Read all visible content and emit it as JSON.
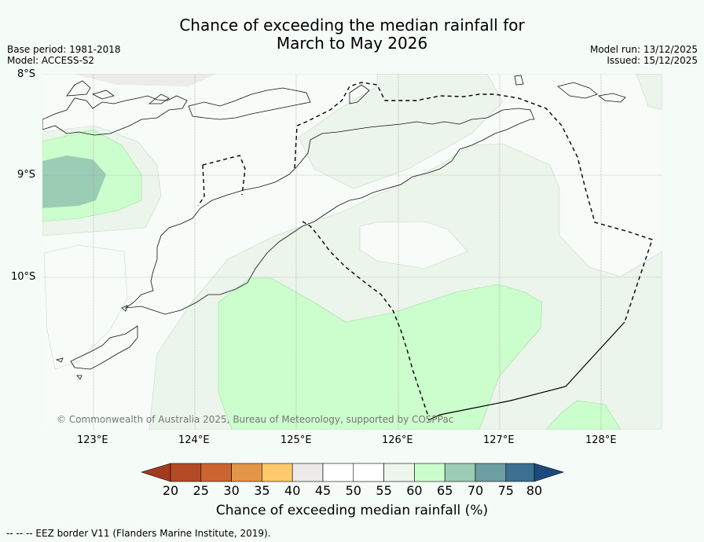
{
  "title": {
    "line1": "Chance of exceeding the median rainfall for",
    "line2": "March to May 2026"
  },
  "meta": {
    "base_period": "Base period: 1981-2018",
    "model": "Model: ACCESS-S2",
    "model_run": "Model run: 13/12/2025",
    "issued": "Issued: 15/12/2025"
  },
  "axes": {
    "lat_ticks": [
      "8°S",
      "9°S",
      "10°S"
    ],
    "lon_ticks": [
      "123°E",
      "124°E",
      "125°E",
      "126°E",
      "127°E",
      "128°E"
    ]
  },
  "map": {
    "copyright": "© Commonwealth of Australia 2025, Bureau of Meteorology, supported by COSPPac",
    "colors": {
      "below_40": "#ecebe8",
      "p40_55": "#f7fcf8",
      "p55_60": "#ebf5eb",
      "p60_65": "#ccfdcc",
      "p65_70": "#9bcdb4",
      "background": "#f5fbf7"
    }
  },
  "colorbar": {
    "labels": [
      "20",
      "25",
      "30",
      "35",
      "40",
      "45",
      "50",
      "55",
      "60",
      "65",
      "70",
      "75",
      "80"
    ],
    "colors": [
      "#a23b1f",
      "#b44b27",
      "#cc6432",
      "#e39647",
      "#fdc96a",
      "#ecebe8",
      "#ffffff",
      "#ffffff",
      "#edf5ed",
      "#ccfdcc",
      "#9bcdb4",
      "#6b9fa3",
      "#3c7092",
      "#1a4a7d"
    ],
    "title": "Chance of exceeding median rainfall (%)"
  },
  "footnote": "--  --  -- EEZ border V11 (Flanders Marine Institute, 2019)."
}
